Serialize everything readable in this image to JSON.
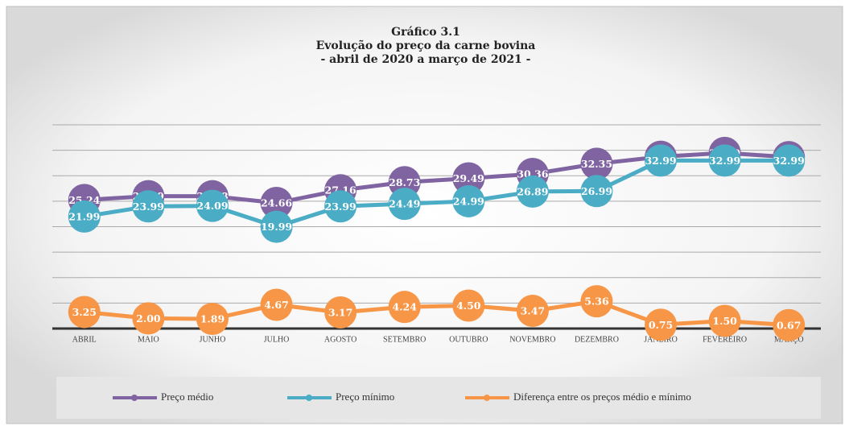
{
  "chart_data": {
    "type": "line",
    "title": [
      "Gráfico 3.1",
      "Evolução do preço da carne bovina",
      "- abril de 2020 a março de 2021 -"
    ],
    "categories": [
      "ABRIL",
      "MAIO",
      "JUNHO",
      "JULHO",
      "AGOSTO",
      "SETEMBRO",
      "OUTUBRO",
      "NOVEMBRO",
      "DEZEMBRO",
      "JANEIRO",
      "FEVEREIRO",
      "MARÇO"
    ],
    "series": [
      {
        "name": "Preço médio",
        "color": "#8064a2",
        "values": [
          25.24,
          25.99,
          25.98,
          24.66,
          27.16,
          28.73,
          29.49,
          30.36,
          32.35,
          33.74,
          34.49,
          33.66
        ],
        "value_labels": [
          "25.24",
          "25.99",
          "25.98",
          "24.66",
          "27.16",
          "28.73",
          "29.49",
          "30.36",
          "32.35",
          "33.74",
          "34.49",
          "33.66"
        ]
      },
      {
        "name": "Preço mínimo",
        "color": "#4bacc6",
        "values": [
          21.99,
          23.99,
          24.09,
          19.99,
          23.99,
          24.49,
          24.99,
          26.89,
          26.99,
          32.99,
          32.99,
          32.99
        ],
        "value_labels": [
          "21.99",
          "23.99",
          "24.09",
          "19.99",
          "23.99",
          "24.49",
          "24.99",
          "26.89",
          "26.99",
          "32.99",
          "32.99",
          "32.99"
        ]
      },
      {
        "name": "Diferença entre os preços médio e mínimo",
        "color": "#f79646",
        "values": [
          3.25,
          2.0,
          1.89,
          4.67,
          3.17,
          4.24,
          4.5,
          3.47,
          5.36,
          0.75,
          1.5,
          0.67
        ],
        "value_labels": [
          "3.25",
          "2.00",
          "1.89",
          "4.67",
          "3.17",
          "4.24",
          "4.50",
          "3.47",
          "5.36",
          "0.75",
          "1.50",
          "0.67"
        ]
      }
    ],
    "ylim": [
      0,
      40
    ],
    "yticks": [
      0,
      5,
      10,
      15,
      20,
      25,
      30,
      35,
      40
    ],
    "ytick_labels": false,
    "grid": true,
    "legend": "bottom"
  }
}
